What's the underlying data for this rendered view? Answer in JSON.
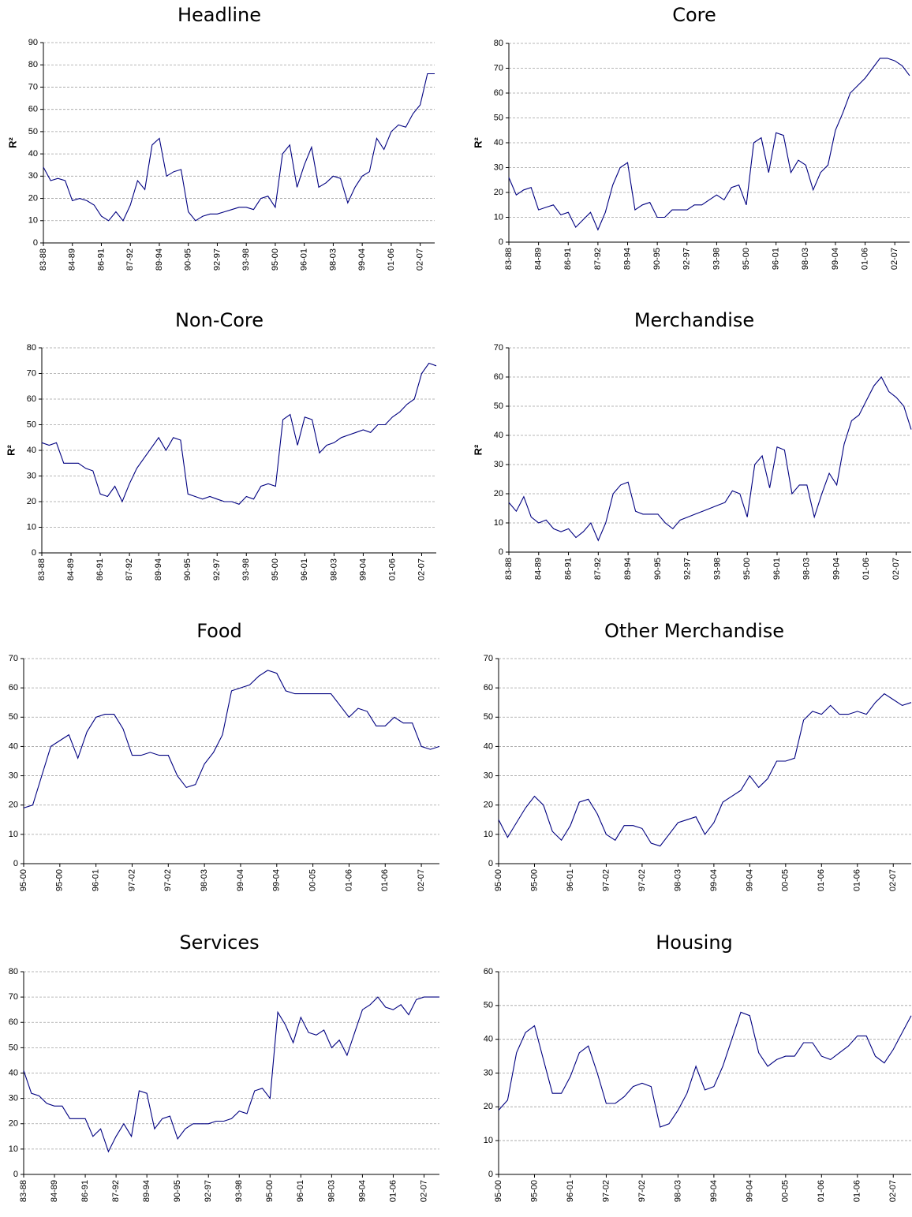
{
  "chart_data": [
    {
      "type": "line",
      "title": "Headline",
      "y_label": "R²",
      "color": "#000080",
      "grid": true,
      "categories": [
        "83-88",
        null,
        null,
        null,
        "84-89",
        null,
        null,
        null,
        "86-91",
        null,
        null,
        null,
        "87-92",
        null,
        null,
        null,
        "89-94",
        null,
        null,
        null,
        "90-95",
        null,
        null,
        null,
        "92-97",
        null,
        null,
        null,
        "93-98",
        null,
        null,
        null,
        "95-00",
        null,
        null,
        null,
        "96-01",
        null,
        null,
        null,
        "98-03",
        null,
        null,
        null,
        "99-04",
        null,
        null,
        null,
        "01-06",
        null,
        null,
        null,
        "02-07",
        null,
        null
      ],
      "values": [
        34,
        28,
        29,
        28,
        19,
        20,
        19,
        17,
        12,
        10,
        14,
        10,
        17,
        28,
        24,
        44,
        47,
        30,
        32,
        33,
        14,
        10,
        12,
        13,
        13,
        14,
        15,
        16,
        16,
        15,
        20,
        21,
        16,
        40,
        44,
        25,
        35,
        43,
        25,
        27,
        30,
        29,
        18,
        25,
        30,
        32,
        47,
        42,
        50,
        53,
        52,
        58,
        62,
        76,
        76
      ],
      "ylim": [
        0,
        90
      ],
      "yticks": [
        0,
        10,
        20,
        30,
        40,
        50,
        60,
        70,
        80,
        90
      ]
    },
    {
      "type": "line",
      "title": "Core",
      "y_label": "R²",
      "color": "#000080",
      "grid": true,
      "categories": [
        "83-88",
        null,
        null,
        null,
        "84-89",
        null,
        null,
        null,
        "86-91",
        null,
        null,
        null,
        "87-92",
        null,
        null,
        null,
        "89-94",
        null,
        null,
        null,
        "90-95",
        null,
        null,
        null,
        "92-97",
        null,
        null,
        null,
        "93-98",
        null,
        null,
        null,
        "95-00",
        null,
        null,
        null,
        "96-01",
        null,
        null,
        null,
        "98-03",
        null,
        null,
        null,
        "99-04",
        null,
        null,
        null,
        "01-06",
        null,
        null,
        null,
        "02-07",
        null,
        null
      ],
      "values": [
        26,
        19,
        21,
        22,
        13,
        14,
        15,
        11,
        12,
        6,
        9,
        12,
        5,
        12,
        23,
        30,
        32,
        13,
        15,
        16,
        10,
        10,
        13,
        13,
        13,
        15,
        15,
        17,
        19,
        17,
        22,
        23,
        15,
        40,
        42,
        28,
        44,
        43,
        28,
        33,
        31,
        21,
        28,
        31,
        45,
        52,
        60,
        63,
        66,
        70,
        74,
        74,
        73,
        71,
        67
      ],
      "ylim": [
        0,
        80
      ],
      "yticks": [
        0,
        10,
        20,
        30,
        40,
        50,
        60,
        70,
        80
      ]
    },
    {
      "type": "line",
      "title": "Non-Core",
      "y_label": "R²",
      "color": "#000080",
      "grid": true,
      "categories": [
        "83-88",
        null,
        null,
        null,
        "84-89",
        null,
        null,
        null,
        "86-91",
        null,
        null,
        null,
        "87-92",
        null,
        null,
        null,
        "89-94",
        null,
        null,
        null,
        "90-95",
        null,
        null,
        null,
        "92-97",
        null,
        null,
        null,
        "93-98",
        null,
        null,
        null,
        "95-00",
        null,
        null,
        null,
        "96-01",
        null,
        null,
        null,
        "98-03",
        null,
        null,
        null,
        "99-04",
        null,
        null,
        null,
        "01-06",
        null,
        null,
        null,
        "02-07",
        null,
        null
      ],
      "values": [
        43,
        42,
        43,
        35,
        35,
        35,
        33,
        32,
        23,
        22,
        26,
        20,
        27,
        33,
        37,
        41,
        45,
        40,
        45,
        44,
        23,
        22,
        21,
        22,
        21,
        20,
        20,
        19,
        22,
        21,
        26,
        27,
        26,
        52,
        54,
        42,
        53,
        52,
        39,
        42,
        43,
        45,
        46,
        47,
        48,
        47,
        50,
        50,
        53,
        55,
        58,
        60,
        70,
        74,
        73
      ],
      "ylim": [
        0,
        80
      ],
      "yticks": [
        0,
        10,
        20,
        30,
        40,
        50,
        60,
        70,
        80
      ]
    },
    {
      "type": "line",
      "title": "Merchandise",
      "y_label": "R²",
      "color": "#000080",
      "grid": true,
      "categories": [
        "83-88",
        null,
        null,
        null,
        "84-89",
        null,
        null,
        null,
        "86-91",
        null,
        null,
        null,
        "87-92",
        null,
        null,
        null,
        "89-94",
        null,
        null,
        null,
        "90-95",
        null,
        null,
        null,
        "92-97",
        null,
        null,
        null,
        "93-98",
        null,
        null,
        null,
        "95-00",
        null,
        null,
        null,
        "96-01",
        null,
        null,
        null,
        "98-03",
        null,
        null,
        null,
        "99-04",
        null,
        null,
        null,
        "01-06",
        null,
        null,
        null,
        "02-07",
        null,
        null
      ],
      "values": [
        17,
        14,
        19,
        12,
        10,
        11,
        8,
        7,
        8,
        5,
        7,
        10,
        4,
        10,
        20,
        23,
        24,
        14,
        13,
        13,
        13,
        10,
        8,
        11,
        12,
        13,
        14,
        15,
        16,
        17,
        21,
        20,
        12,
        30,
        33,
        22,
        36,
        35,
        20,
        23,
        23,
        12,
        20,
        27,
        23,
        37,
        45,
        47,
        52,
        57,
        60,
        55,
        53,
        50,
        42
      ],
      "ylim": [
        0,
        70
      ],
      "yticks": [
        0,
        10,
        20,
        30,
        40,
        50,
        60,
        70
      ]
    },
    {
      "type": "line",
      "title": "Food",
      "color": "#000080",
      "grid": true,
      "categories": [
        "95-00",
        null,
        null,
        null,
        "95-00",
        null,
        null,
        null,
        "96-01",
        null,
        null,
        null,
        "97-02",
        null,
        null,
        null,
        "97-02",
        null,
        null,
        null,
        "98-03",
        null,
        null,
        null,
        "99-04",
        null,
        null,
        null,
        "99-04",
        null,
        null,
        null,
        "00-05",
        null,
        null,
        null,
        "01-06",
        null,
        null,
        null,
        "01-06",
        null,
        null,
        null,
        "02-07",
        null,
        null
      ],
      "values": [
        19,
        20,
        30,
        40,
        42,
        44,
        36,
        45,
        50,
        51,
        51,
        46,
        37,
        37,
        38,
        37,
        37,
        30,
        26,
        27,
        34,
        38,
        44,
        59,
        60,
        61,
        64,
        66,
        65,
        59,
        58,
        58,
        58,
        58,
        58,
        54,
        50,
        53,
        52,
        47,
        47,
        50,
        48,
        48,
        40,
        39,
        40
      ],
      "ylim": [
        0,
        70
      ],
      "yticks": [
        0,
        10,
        20,
        30,
        40,
        50,
        60,
        70
      ]
    },
    {
      "type": "line",
      "title": "Other Merchandise",
      "color": "#000080",
      "grid": true,
      "categories": [
        "95-00",
        null,
        null,
        null,
        "95-00",
        null,
        null,
        null,
        "96-01",
        null,
        null,
        null,
        "97-02",
        null,
        null,
        null,
        "97-02",
        null,
        null,
        null,
        "98-03",
        null,
        null,
        null,
        "99-04",
        null,
        null,
        null,
        "99-04",
        null,
        null,
        null,
        "00-05",
        null,
        null,
        null,
        "01-06",
        null,
        null,
        null,
        "01-06",
        null,
        null,
        null,
        "02-07",
        null,
        null
      ],
      "values": [
        15,
        9,
        14,
        19,
        23,
        20,
        11,
        8,
        13,
        21,
        22,
        17,
        10,
        8,
        13,
        13,
        12,
        7,
        6,
        10,
        14,
        15,
        16,
        10,
        14,
        21,
        23,
        25,
        30,
        26,
        29,
        35,
        35,
        36,
        49,
        52,
        51,
        54,
        51,
        51,
        52,
        51,
        55,
        58,
        56,
        54,
        55
      ],
      "ylim": [
        0,
        70
      ],
      "yticks": [
        0,
        10,
        20,
        30,
        40,
        50,
        60,
        70
      ]
    },
    {
      "type": "line",
      "title": "Services",
      "color": "#000080",
      "grid": true,
      "categories": [
        "83-88",
        null,
        null,
        null,
        "84-89",
        null,
        null,
        null,
        "86-91",
        null,
        null,
        null,
        "87-92",
        null,
        null,
        null,
        "89-94",
        null,
        null,
        null,
        "90-95",
        null,
        null,
        null,
        "92-97",
        null,
        null,
        null,
        "93-98",
        null,
        null,
        null,
        "95-00",
        null,
        null,
        null,
        "96-01",
        null,
        null,
        null,
        "98-03",
        null,
        null,
        null,
        "99-04",
        null,
        null,
        null,
        "01-06",
        null,
        null,
        null,
        "02-07",
        null,
        null
      ],
      "values": [
        41,
        32,
        31,
        28,
        27,
        27,
        22,
        22,
        22,
        15,
        18,
        9,
        15,
        20,
        15,
        33,
        32,
        18,
        22,
        23,
        14,
        18,
        20,
        20,
        20,
        21,
        21,
        22,
        25,
        24,
        33,
        34,
        30,
        64,
        59,
        52,
        62,
        56,
        55,
        57,
        50,
        53,
        47,
        56,
        65,
        67,
        70,
        66,
        65,
        67,
        63,
        69,
        70,
        70,
        70
      ],
      "ylim": [
        0,
        80
      ],
      "yticks": [
        0,
        10,
        20,
        30,
        40,
        50,
        60,
        70,
        80
      ]
    },
    {
      "type": "line",
      "title": "Housing",
      "color": "#000080",
      "grid": true,
      "categories": [
        "95-00",
        null,
        null,
        null,
        "95-00",
        null,
        null,
        null,
        "96-01",
        null,
        null,
        null,
        "97-02",
        null,
        null,
        null,
        "97-02",
        null,
        null,
        null,
        "98-03",
        null,
        null,
        null,
        "99-04",
        null,
        null,
        null,
        "99-04",
        null,
        null,
        null,
        "00-05",
        null,
        null,
        null,
        "01-06",
        null,
        null,
        null,
        "01-06",
        null,
        null,
        null,
        "02-07",
        null,
        null
      ],
      "values": [
        19,
        22,
        36,
        42,
        44,
        34,
        24,
        24,
        29,
        36,
        38,
        30,
        21,
        21,
        23,
        26,
        27,
        26,
        14,
        15,
        19,
        24,
        32,
        25,
        26,
        32,
        40,
        48,
        47,
        36,
        32,
        34,
        35,
        35,
        39,
        39,
        35,
        34,
        36,
        38,
        41,
        41,
        35,
        33,
        37,
        42,
        47
      ],
      "ylim": [
        0,
        60
      ],
      "yticks": [
        0,
        10,
        20,
        30,
        40,
        50,
        60
      ]
    }
  ]
}
